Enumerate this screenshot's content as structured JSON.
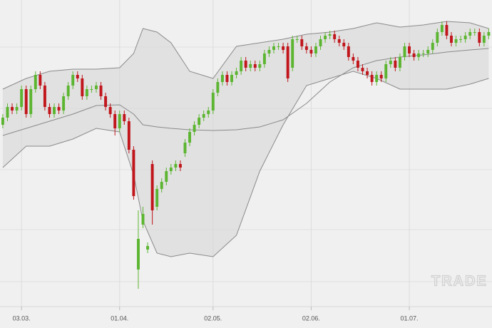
{
  "chart_data": {
    "type": "candlestick",
    "x": [
      0,
      1,
      2,
      3,
      4,
      5,
      6,
      7,
      8,
      9,
      10,
      11,
      12,
      13,
      14,
      15,
      16,
      17,
      18,
      19,
      20,
      21,
      22,
      23,
      24,
      25,
      26,
      27,
      28,
      29,
      30,
      31,
      32,
      33,
      34,
      35,
      36,
      37,
      38,
      39,
      40,
      41,
      42,
      43,
      44,
      45,
      46,
      47,
      48,
      49,
      50,
      51,
      52,
      53,
      54,
      55,
      56,
      57,
      58,
      59,
      60,
      61,
      62,
      63,
      64,
      65,
      66,
      67,
      68,
      69,
      70,
      71,
      72,
      73,
      74,
      75,
      76,
      77,
      78,
      79,
      80,
      81,
      82,
      83,
      84,
      85,
      86,
      87,
      88,
      89,
      90,
      91,
      92,
      93,
      94,
      95,
      96,
      97,
      98,
      99,
      100,
      101,
      102,
      103,
      104
    ],
    "open": [
      285,
      295,
      310,
      305,
      310,
      335,
      300,
      335,
      355,
      340,
      310,
      300,
      310,
      305,
      325,
      340,
      355,
      350,
      325,
      335,
      335,
      340,
      325,
      310,
      300,
      280,
      300,
      290,
      250,
      82,
      145,
      110,
      230,
      170,
      195,
      205,
      220,
      225,
      230,
      245,
      260,
      275,
      285,
      295,
      300,
      305,
      330,
      345,
      355,
      345,
      355,
      360,
      375,
      365,
      370,
      365,
      370,
      385,
      390,
      395,
      395,
      395,
      365,
      405,
      405,
      395,
      390,
      385,
      395,
      405,
      410,
      412,
      405,
      400,
      395,
      380,
      375,
      365,
      360,
      355,
      345,
      355,
      350,
      370,
      375,
      365,
      380,
      395,
      385,
      380,
      385,
      385,
      390,
      400,
      415,
      425,
      410,
      400,
      405,
      405,
      410,
      415,
      415,
      400,
      410
    ],
    "high": [
      300,
      315,
      315,
      315,
      340,
      340,
      340,
      360,
      360,
      345,
      315,
      315,
      315,
      330,
      345,
      360,
      360,
      355,
      340,
      340,
      345,
      345,
      330,
      315,
      305,
      305,
      305,
      295,
      255,
      165,
      170,
      120,
      235,
      200,
      210,
      225,
      230,
      235,
      235,
      265,
      280,
      290,
      300,
      305,
      310,
      335,
      350,
      360,
      360,
      360,
      365,
      380,
      380,
      375,
      375,
      375,
      390,
      395,
      400,
      400,
      400,
      400,
      410,
      410,
      410,
      400,
      395,
      400,
      410,
      415,
      417,
      417,
      410,
      405,
      400,
      385,
      380,
      370,
      365,
      360,
      360,
      360,
      375,
      380,
      380,
      385,
      400,
      400,
      390,
      390,
      390,
      395,
      405,
      420,
      430,
      430,
      415,
      410,
      410,
      415,
      420,
      420,
      420,
      415,
      420
    ],
    "low": [
      280,
      290,
      300,
      300,
      305,
      295,
      295,
      330,
      335,
      305,
      295,
      295,
      300,
      300,
      320,
      335,
      345,
      320,
      320,
      330,
      330,
      320,
      305,
      295,
      270,
      275,
      285,
      245,
      180,
      55,
      140,
      105,
      145,
      165,
      190,
      200,
      215,
      220,
      220,
      240,
      255,
      270,
      280,
      290,
      295,
      300,
      325,
      340,
      340,
      340,
      350,
      355,
      360,
      360,
      360,
      360,
      365,
      380,
      385,
      390,
      385,
      345,
      360,
      400,
      390,
      385,
      380,
      380,
      390,
      400,
      405,
      400,
      395,
      390,
      375,
      370,
      360,
      355,
      350,
      340,
      340,
      345,
      345,
      365,
      360,
      360,
      375,
      380,
      375,
      375,
      380,
      380,
      385,
      395,
      410,
      405,
      395,
      395,
      400,
      400,
      405,
      410,
      395,
      395,
      405
    ],
    "close": [
      295,
      310,
      305,
      310,
      335,
      300,
      335,
      355,
      340,
      310,
      300,
      310,
      305,
      325,
      340,
      355,
      350,
      325,
      335,
      335,
      340,
      325,
      310,
      300,
      280,
      300,
      290,
      250,
      185,
      125,
      160,
      115,
      165,
      195,
      205,
      220,
      225,
      230,
      225,
      260,
      275,
      285,
      295,
      300,
      305,
      330,
      345,
      355,
      345,
      355,
      360,
      375,
      365,
      370,
      365,
      370,
      385,
      390,
      395,
      395,
      390,
      350,
      405,
      405,
      395,
      390,
      385,
      395,
      405,
      410,
      412,
      405,
      400,
      395,
      380,
      375,
      365,
      360,
      355,
      345,
      355,
      350,
      370,
      375,
      365,
      380,
      395,
      385,
      380,
      385,
      385,
      390,
      400,
      415,
      425,
      410,
      400,
      405,
      405,
      410,
      415,
      415,
      400,
      410,
      415
    ],
    "up_color": "#5cb531",
    "down_color": "#c0161c",
    "bands": {
      "x": [
        0,
        5,
        10,
        15,
        20,
        25,
        28,
        30,
        33,
        36,
        40,
        45,
        50,
        55,
        60,
        65,
        70,
        75,
        80,
        85,
        90,
        95,
        100,
        104
      ],
      "upper": [
        335,
        350,
        360,
        363,
        363,
        365,
        385,
        420,
        415,
        400,
        360,
        350,
        395,
        400,
        405,
        412,
        415,
        420,
        428,
        422,
        425,
        430,
        428,
        420
      ],
      "middle": [
        270,
        280,
        290,
        300,
        312,
        313,
        300,
        285,
        282,
        280,
        278,
        277,
        278,
        282,
        292,
        315,
        345,
        365,
        375,
        380,
        383,
        387,
        390,
        392
      ],
      "lower": [
        225,
        255,
        255,
        265,
        280,
        275,
        215,
        150,
        105,
        100,
        105,
        100,
        130,
        220,
        285,
        340,
        350,
        360,
        350,
        335,
        335,
        335,
        342,
        350
      ]
    },
    "xlim": [
      -0.6,
      104.7
    ],
    "ylim": [
      0,
      460
    ],
    "xticks": [
      {
        "value": 4,
        "label": "03.03."
      },
      {
        "value": 25,
        "label": "01.04."
      },
      {
        "value": 45,
        "label": "02.05."
      },
      {
        "value": 66,
        "label": "02.06."
      },
      {
        "value": 87,
        "label": "01.07."
      }
    ],
    "watermark": "TRADE"
  }
}
